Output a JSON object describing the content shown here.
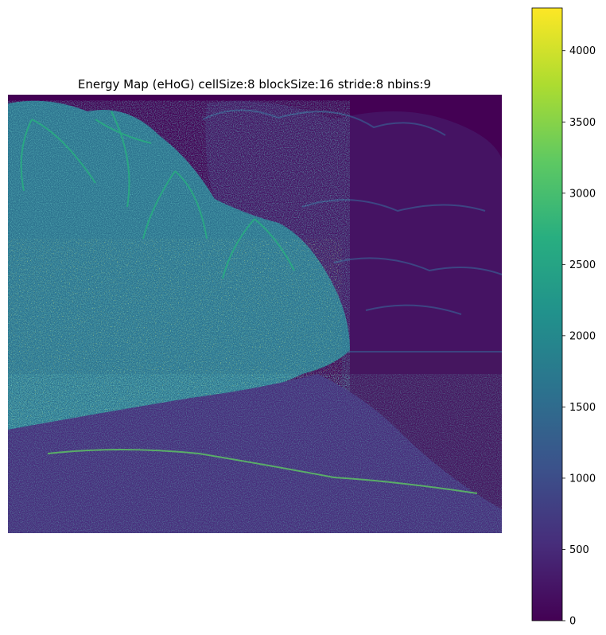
{
  "chart_data": {
    "type": "heatmap",
    "title": "Energy Map (eHoG) cellSize:8 blockSize:16 stride:8 nbins:9",
    "xlabel": "",
    "ylabel": "",
    "axes_visible": false,
    "grid": false,
    "colormap": "viridis",
    "colorbar": {
      "range": [
        0,
        4300
      ],
      "ticks": [
        0,
        500,
        1000,
        1500,
        2000,
        2500,
        3000,
        3500,
        4000
      ],
      "tick_labels": [
        "0",
        "500",
        "1000",
        "1500",
        "2000",
        "2500",
        "3000",
        "3500",
        "4000"
      ],
      "placement": "right"
    },
    "colors": {
      "low": "#440154",
      "mid": "#21918c",
      "high": "#fde725"
    }
  }
}
